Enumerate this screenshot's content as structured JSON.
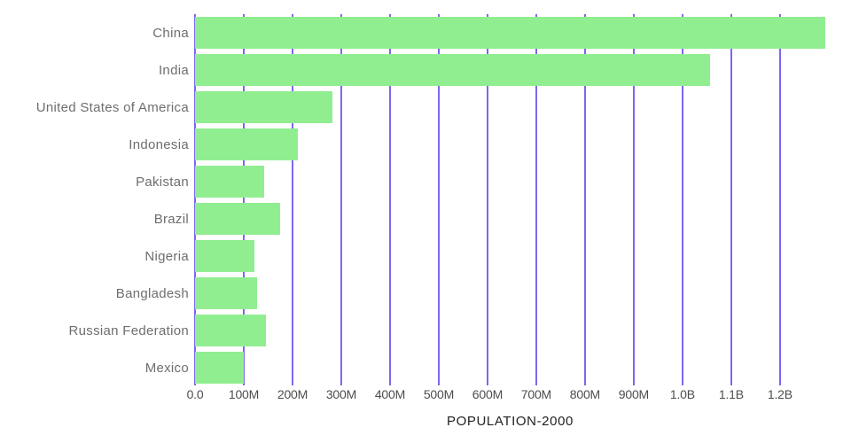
{
  "chart_data": {
    "type": "bar",
    "orientation": "horizontal",
    "title": "POPULATION-2000",
    "categories": [
      "China",
      "India",
      "United States of America",
      "Indonesia",
      "Pakistan",
      "Brazil",
      "Nigeria",
      "Bangladesh",
      "Russian Federation",
      "Mexico"
    ],
    "values_millions": [
      1293,
      1056,
      282,
      211,
      142,
      175,
      122,
      128,
      146,
      100
    ],
    "x_ticks": [
      {
        "label": "0.0",
        "value": 0
      },
      {
        "label": "100M",
        "value": 100
      },
      {
        "label": "200M",
        "value": 200
      },
      {
        "label": "300M",
        "value": 300
      },
      {
        "label": "400M",
        "value": 400
      },
      {
        "label": "500M",
        "value": 500
      },
      {
        "label": "600M",
        "value": 600
      },
      {
        "label": "700M",
        "value": 700
      },
      {
        "label": "800M",
        "value": 800
      },
      {
        "label": "900M",
        "value": 900
      },
      {
        "label": "1.0B",
        "value": 1000
      },
      {
        "label": "1.1B",
        "value": 1100
      },
      {
        "label": "1.2B",
        "value": 1200
      }
    ],
    "xlim_millions": [
      0,
      1293
    ],
    "grid": "vertical",
    "legend": "none",
    "colors": {
      "bar": "#90EE90",
      "gridline": "#7B68EE",
      "category_label": "#6e6e6e",
      "tick_label": "#4d4d4d",
      "title": "#222222",
      "background": "#ffffff"
    }
  }
}
